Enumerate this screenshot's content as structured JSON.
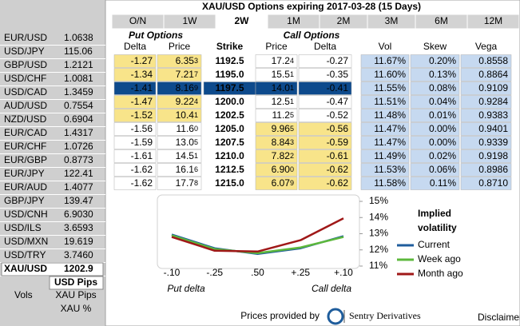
{
  "sidebar": {
    "rates": [
      {
        "pair": "EUR/USD",
        "value": "1.0638",
        "color": "#1a8a1a"
      },
      {
        "pair": "USD/JPY",
        "value": "115.06",
        "color": "#000000"
      },
      {
        "pair": "GBP/USD",
        "value": "1.2121",
        "color": "#e01010"
      },
      {
        "pair": "USD/CHF",
        "value": "1.0081",
        "color": "#e01010"
      },
      {
        "pair": "USD/CAD",
        "value": "1.3459",
        "color": "#000000"
      },
      {
        "pair": "AUD/USD",
        "value": "0.7554",
        "color": "#000000"
      },
      {
        "pair": "NZD/USD",
        "value": "0.6904",
        "color": "#e01010"
      },
      {
        "pair": "EUR/CAD",
        "value": "1.4317",
        "color": "#1a8a1a"
      },
      {
        "pair": "EUR/CHF",
        "value": "1.0726",
        "color": "#000000"
      },
      {
        "pair": "EUR/GBP",
        "value": "0.8773",
        "color": "#1a8a1a"
      },
      {
        "pair": "EUR/JPY",
        "value": "122.41",
        "color": "#1a8a1a"
      },
      {
        "pair": "EUR/AUD",
        "value": "1.4077",
        "color": "#000000"
      },
      {
        "pair": "GBP/JPY",
        "value": "139.47",
        "color": "#e01010"
      },
      {
        "pair": "USD/CNH",
        "value": "6.9030",
        "color": "#1a8a1a"
      },
      {
        "pair": "USD/ILS",
        "value": "3.6593",
        "color": "#000000"
      },
      {
        "pair": "USD/MXN",
        "value": "19.619",
        "color": "#000000"
      },
      {
        "pair": "USD/TRY",
        "value": "3.7460",
        "color": "#1a8a1a"
      },
      {
        "pair": "XAU/USD",
        "value": "1202.9",
        "color": "#e01010"
      }
    ],
    "usd_pips": "USD Pips",
    "vols": "Vols",
    "xau_pips": "XAU Pips",
    "xau_pct": "XAU %"
  },
  "header": {
    "title": "XAU/USD Options expiring 2017-03-28 (15 Days)",
    "tabs": [
      "O/N",
      "1W",
      "2W",
      "1M",
      "2M",
      "3M",
      "6M",
      "12M"
    ]
  },
  "table": {
    "put_title": "Put Options",
    "call_title": "Call Options",
    "columns": [
      "Delta",
      "Price",
      "Strike",
      "Price",
      "Delta",
      "Vol",
      "Skew",
      "Vega"
    ],
    "rows": [
      [
        "-1.27",
        "6.353",
        "1192.5",
        "17.24",
        "-0.27",
        "11.67%",
        "0.20%",
        "0.8558"
      ],
      [
        "-1.34",
        "7.217",
        "1195.0",
        "15.51",
        "-0.35",
        "11.60%",
        "0.13%",
        "0.8864"
      ],
      [
        "-1.41",
        "8.169",
        "1197.5",
        "14.01",
        "-0.41",
        "11.55%",
        "0.08%",
        "0.9109"
      ],
      [
        "-1.47",
        "9.224",
        "1200.0",
        "12.51",
        "-0.47",
        "11.51%",
        "0.04%",
        "0.9284"
      ],
      [
        "-1.52",
        "10.41",
        "1202.5",
        "11.25",
        "-0.52",
        "11.48%",
        "0.01%",
        "0.9383"
      ],
      [
        "-1.56",
        "11.60",
        "1205.0",
        "9.965",
        "-0.56",
        "11.47%",
        "0.00%",
        "0.9401"
      ],
      [
        "-1.59",
        "13.05",
        "1207.5",
        "8.843",
        "-0.59",
        "11.47%",
        "0.00%",
        "0.9339"
      ],
      [
        "-1.61",
        "14.51",
        "1210.0",
        "7.822",
        "-0.61",
        "11.49%",
        "0.02%",
        "0.9198"
      ],
      [
        "-1.62",
        "16.16",
        "1212.5",
        "6.900",
        "-0.62",
        "11.53%",
        "0.06%",
        "0.8986"
      ],
      [
        "-1.62",
        "17.78",
        "1215.0",
        "6.079",
        "-0.62",
        "11.58%",
        "0.11%",
        "0.8710"
      ]
    ]
  },
  "chart_data": {
    "type": "line",
    "legend_title": [
      "Implied",
      "volatility"
    ],
    "categories": [
      "-.10",
      "-.25",
      ".50",
      "+.25",
      "+.10"
    ],
    "x_notes": [
      "Put delta",
      "Call delta"
    ],
    "ylim": [
      11,
      15
    ],
    "yticks": [
      {
        "value": 11,
        "label": "11%"
      },
      {
        "value": 12,
        "label": "12%"
      },
      {
        "value": 13,
        "label": "13%"
      },
      {
        "value": 14,
        "label": "14%"
      },
      {
        "value": 15,
        "label": "15%"
      }
    ],
    "series": [
      {
        "name": "Current",
        "color": "#1f5d9c",
        "values": [
          12.95,
          12.1,
          11.75,
          12.1,
          12.85
        ]
      },
      {
        "name": "Week ago",
        "color": "#5cb83c",
        "values": [
          12.9,
          12.05,
          11.8,
          12.15,
          12.8
        ]
      },
      {
        "name": "Month ago",
        "color": "#a01818",
        "values": [
          12.8,
          11.95,
          11.9,
          12.6,
          13.95
        ]
      }
    ]
  },
  "footer": {
    "provided": "Prices provided by",
    "brand": "Sentry Derivatives",
    "disclaimer": "Disclaimer"
  }
}
